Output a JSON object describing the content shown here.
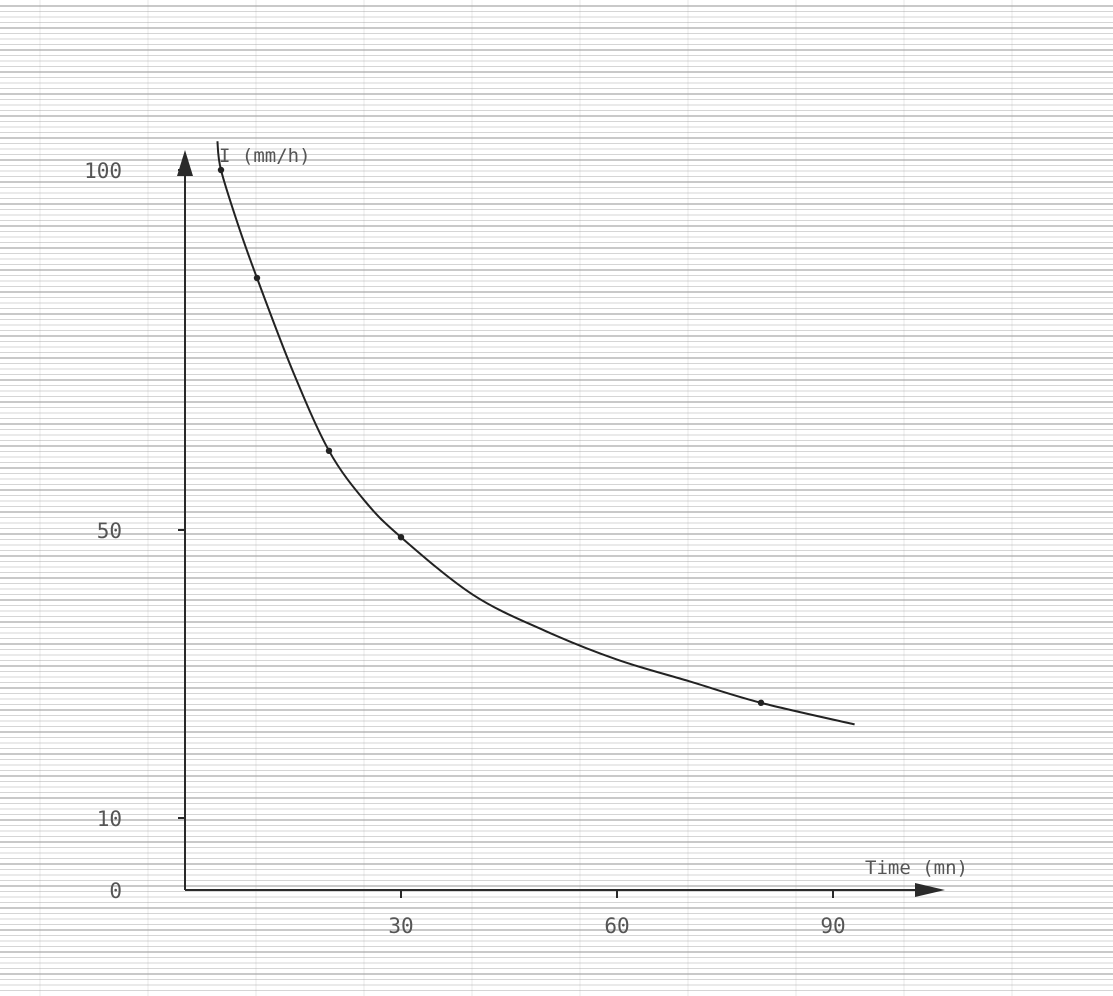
{
  "chart_data": {
    "type": "line",
    "title": "",
    "xlabel": "Time (mn)",
    "ylabel": "I (mm/h)",
    "xlim": [
      0,
      95
    ],
    "ylim": [
      0,
      105
    ],
    "x_ticks": [
      {
        "value": 30,
        "label": "30"
      },
      {
        "value": 60,
        "label": "60"
      },
      {
        "value": 90,
        "label": "90"
      }
    ],
    "y_ticks": [
      {
        "value": 0,
        "label": "0"
      },
      {
        "value": 10,
        "label": "10"
      },
      {
        "value": 50,
        "label": "50"
      },
      {
        "value": 100,
        "label": "100"
      }
    ],
    "grid": true,
    "series": [
      {
        "points": [
          {
            "x": 5,
            "y": 100
          },
          {
            "x": 10,
            "y": 85
          },
          {
            "x": 20,
            "y": 61
          },
          {
            "x": 30,
            "y": 49
          },
          {
            "x": 80,
            "y": 26
          }
        ],
        "curve": [
          {
            "x": 4.5,
            "y": 104
          },
          {
            "x": 5,
            "y": 100
          },
          {
            "x": 7.5,
            "y": 92
          },
          {
            "x": 10,
            "y": 85
          },
          {
            "x": 15,
            "y": 72
          },
          {
            "x": 20,
            "y": 61
          },
          {
            "x": 25,
            "y": 54
          },
          {
            "x": 30,
            "y": 49
          },
          {
            "x": 40,
            "y": 41
          },
          {
            "x": 50,
            "y": 36
          },
          {
            "x": 60,
            "y": 32
          },
          {
            "x": 70,
            "y": 29
          },
          {
            "x": 80,
            "y": 26
          },
          {
            "x": 93,
            "y": 23
          }
        ]
      }
    ],
    "colors": {
      "line": "#222222",
      "grid": "#9a9a9a",
      "text": "#555555",
      "background": "#ffffff"
    }
  }
}
